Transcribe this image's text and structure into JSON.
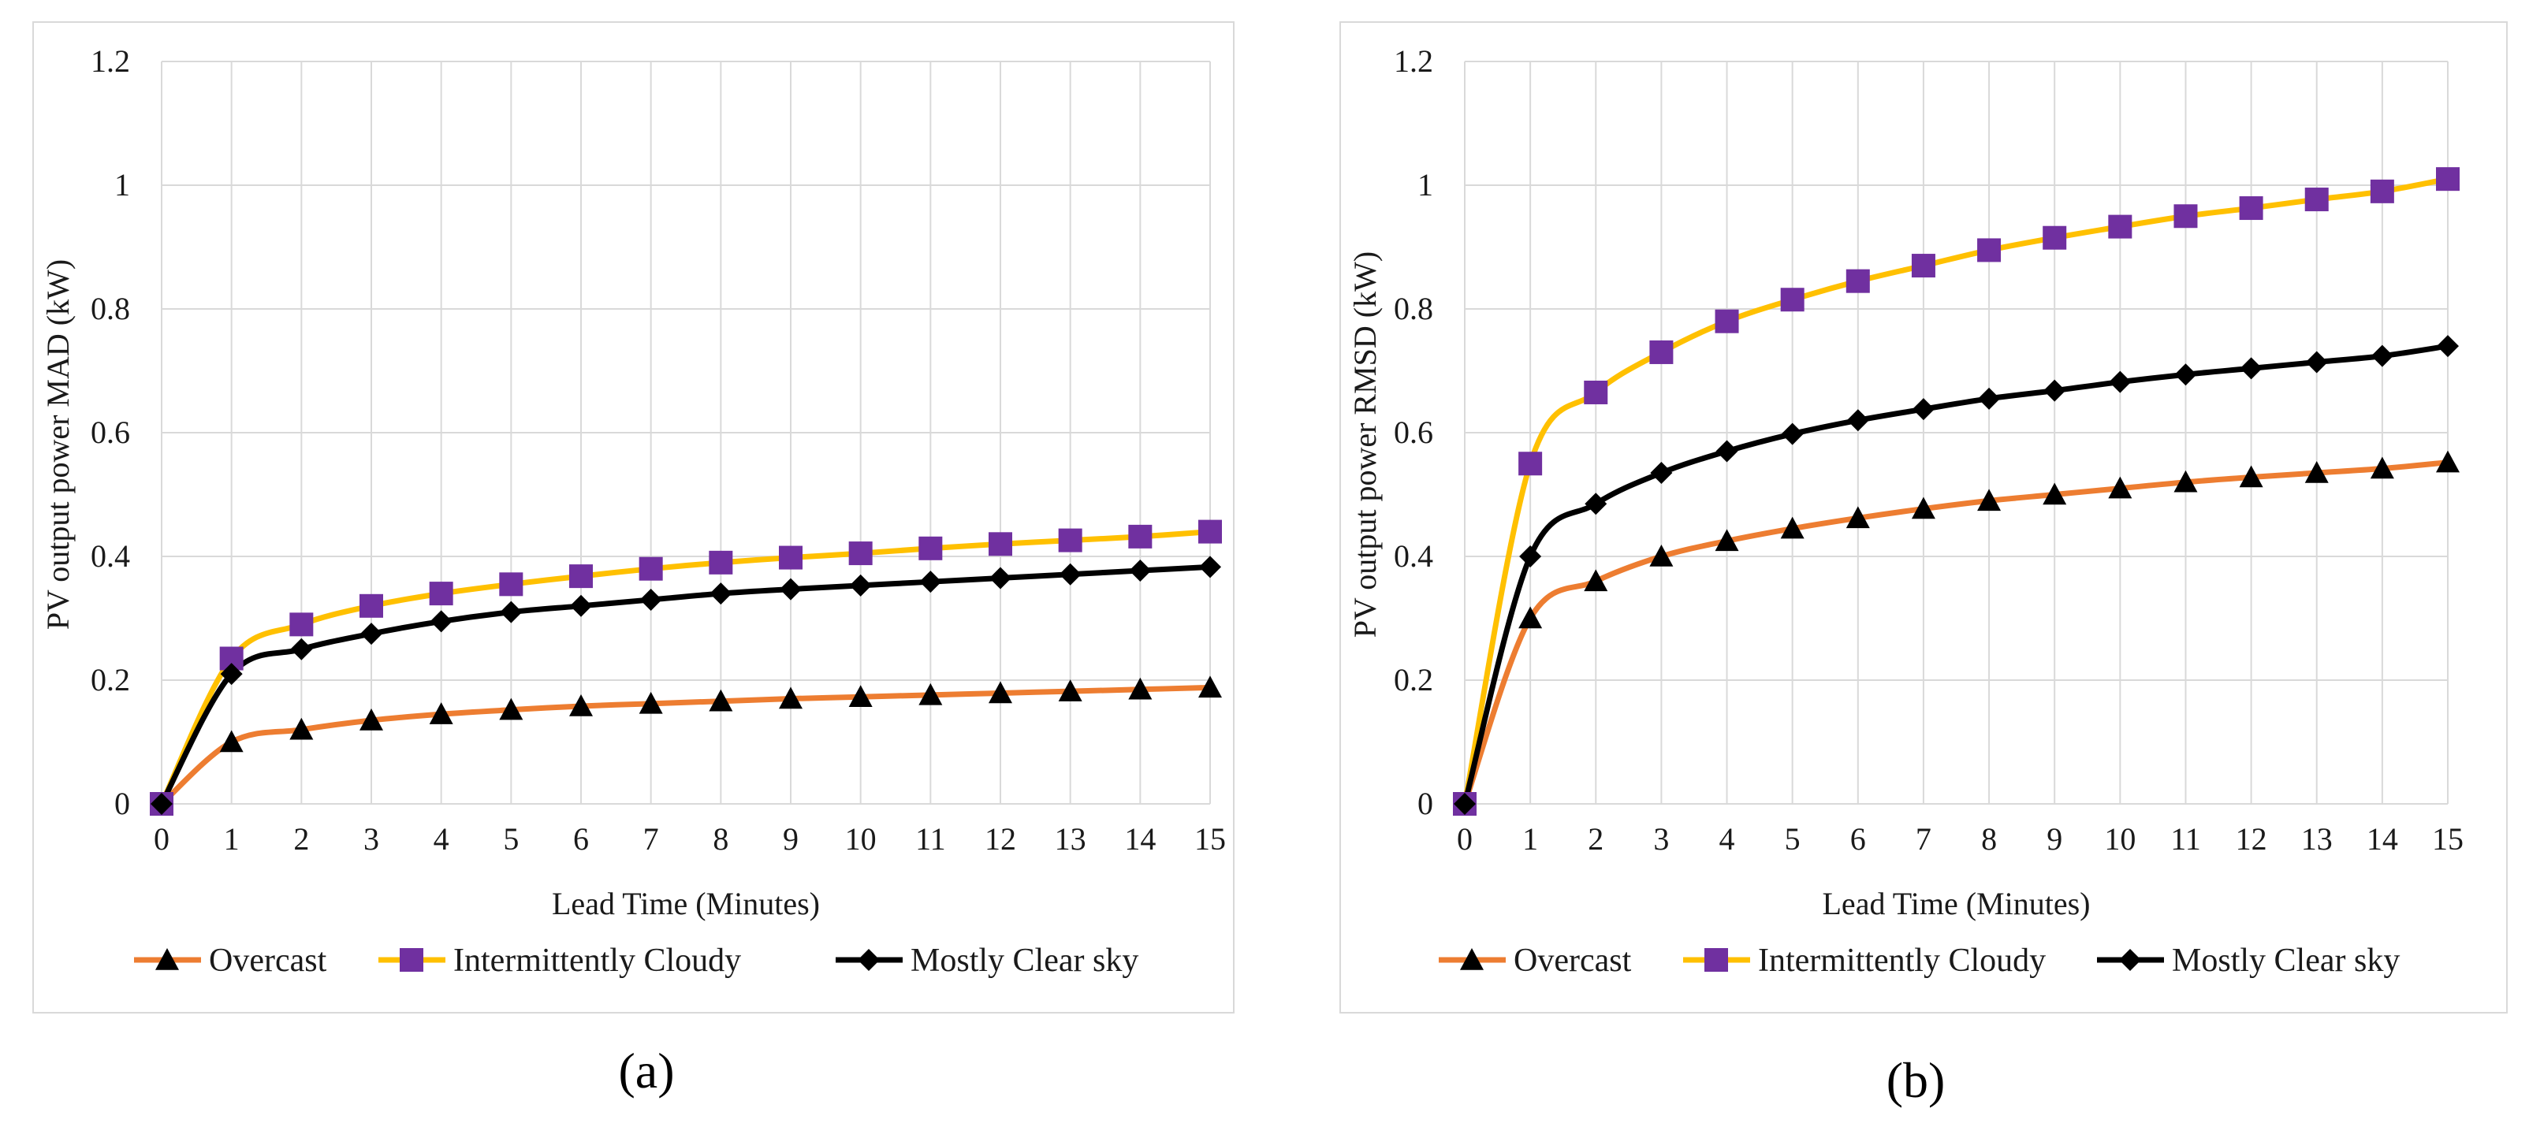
{
  "chart_data": [
    {
      "type": "line",
      "panel_label": "(a)",
      "title": "",
      "xlabel": "Lead Time (Minutes)",
      "ylabel": "PV output power MAD (kW)",
      "x": [
        0,
        1,
        2,
        3,
        4,
        5,
        6,
        7,
        8,
        9,
        10,
        11,
        12,
        13,
        14,
        15
      ],
      "xticks": [
        "0",
        "1",
        "2",
        "3",
        "4",
        "5",
        "6",
        "7",
        "8",
        "9",
        "10",
        "11",
        "12",
        "13",
        "14",
        "15"
      ],
      "ylim": [
        0,
        1.2
      ],
      "yticks": [
        "0",
        "0.2",
        "0.4",
        "0.6",
        "0.8",
        "1",
        "1.2"
      ],
      "grid": true,
      "legend_position": "bottom",
      "series": [
        {
          "name": "Overcast",
          "color": "#ed7d31",
          "marker": "triangle",
          "values": [
            0,
            0.1,
            0.12,
            0.135,
            0.145,
            0.152,
            0.158,
            0.162,
            0.166,
            0.17,
            0.173,
            0.176,
            0.179,
            0.182,
            0.185,
            0.188
          ]
        },
        {
          "name": "Intermittently Cloudy",
          "color": "#ffc000",
          "marker": "square",
          "marker_color": "#7030a0",
          "values": [
            0,
            0.235,
            0.29,
            0.32,
            0.34,
            0.355,
            0.368,
            0.38,
            0.39,
            0.398,
            0.405,
            0.413,
            0.42,
            0.426,
            0.432,
            0.44
          ]
        },
        {
          "name": "Mostly Clear sky",
          "color": "#000000",
          "marker": "diamond",
          "values": [
            0,
            0.21,
            0.25,
            0.275,
            0.295,
            0.31,
            0.32,
            0.33,
            0.34,
            0.347,
            0.353,
            0.359,
            0.365,
            0.371,
            0.377,
            0.383
          ]
        }
      ]
    },
    {
      "type": "line",
      "panel_label": "(b)",
      "title": "",
      "xlabel": "Lead Time (Minutes)",
      "ylabel": "PV output power RMSD (kW)",
      "x": [
        0,
        1,
        2,
        3,
        4,
        5,
        6,
        7,
        8,
        9,
        10,
        11,
        12,
        13,
        14,
        15
      ],
      "xticks": [
        "0",
        "1",
        "2",
        "3",
        "4",
        "5",
        "6",
        "7",
        "8",
        "9",
        "10",
        "11",
        "12",
        "13",
        "14",
        "15"
      ],
      "ylim": [
        0,
        1.2
      ],
      "yticks": [
        "0",
        "0.2",
        "0.4",
        "0.6",
        "0.8",
        "1",
        "1.2"
      ],
      "grid": true,
      "legend_position": "bottom",
      "series": [
        {
          "name": "Overcast",
          "color": "#ed7d31",
          "marker": "triangle",
          "values": [
            0,
            0.3,
            0.36,
            0.4,
            0.425,
            0.445,
            0.462,
            0.477,
            0.49,
            0.5,
            0.51,
            0.52,
            0.528,
            0.535,
            0.542,
            0.552
          ]
        },
        {
          "name": "Intermittently Cloudy",
          "color": "#ffc000",
          "marker": "square",
          "marker_color": "#7030a0",
          "values": [
            0,
            0.55,
            0.665,
            0.73,
            0.78,
            0.815,
            0.845,
            0.87,
            0.895,
            0.915,
            0.933,
            0.95,
            0.963,
            0.977,
            0.99,
            1.01
          ]
        },
        {
          "name": "Mostly Clear sky",
          "color": "#000000",
          "marker": "diamond",
          "values": [
            0,
            0.4,
            0.485,
            0.535,
            0.57,
            0.598,
            0.62,
            0.638,
            0.655,
            0.668,
            0.682,
            0.694,
            0.704,
            0.714,
            0.724,
            0.74
          ]
        }
      ]
    }
  ]
}
